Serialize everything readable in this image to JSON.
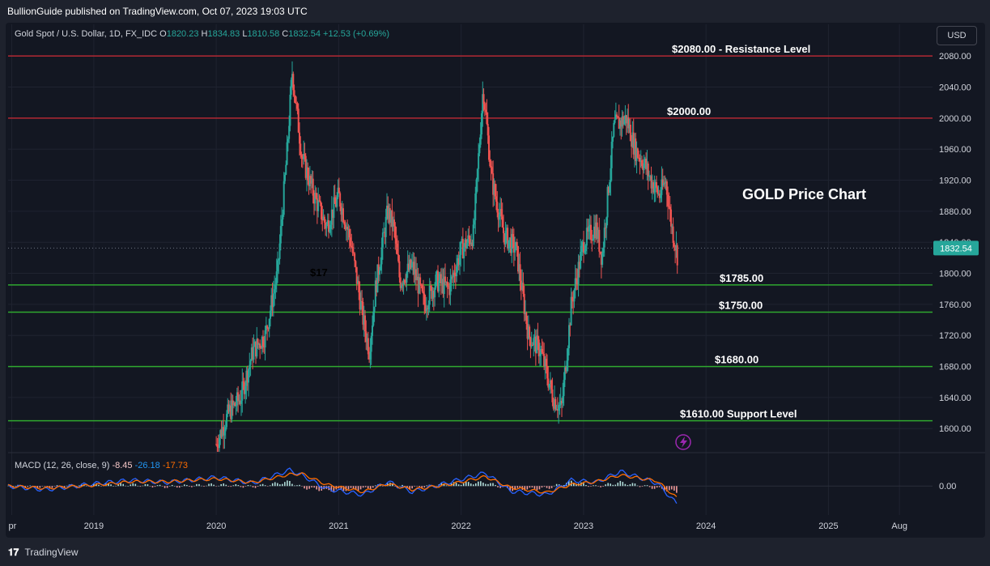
{
  "header": {
    "publisher_line": "BullionGuide published on TradingView.com, Oct 07, 2023 19:03 UTC"
  },
  "legend": {
    "symbol": "Gold Spot / U.S. Dollar, 1D, FX_IDC",
    "o_label": "O",
    "o_value": "1820.23",
    "h_label": "H",
    "h_value": "1834.83",
    "l_label": "L",
    "l_value": "1810.58",
    "c_label": "C",
    "c_value": "1832.54",
    "change": "+12.53 (+0.69%)"
  },
  "currency_button": "USD",
  "macd": {
    "label": "MACD (12, 26, close, 9)",
    "hist_value": "-8.45",
    "macd_value": "-26.18",
    "signal_value": "-17.73"
  },
  "footer": {
    "brand": "TradingView"
  },
  "colors": {
    "resistance": "#b22833",
    "support": "#2fa82f",
    "up": "#26a69a",
    "down": "#ef5350",
    "macd_line": "#2962ff",
    "signal_line": "#ff6d00",
    "last_price_bg": "#26a69a"
  },
  "chart_data": {
    "type": "line",
    "title": "GOLD Price Chart",
    "y_axis_ticks": [
      1600,
      1640,
      1680,
      1720,
      1760,
      1800,
      1840,
      1880,
      1920,
      1960,
      2000,
      2040,
      2080
    ],
    "y_axis_tick_labels": [
      "1600.00",
      "1640.00",
      "1680.00",
      "1720.00",
      "1760.00",
      "1800.00",
      "1840.00",
      "1880.00",
      "1920.00",
      "1960.00",
      "2000.00",
      "2040.00",
      "2080.00"
    ],
    "ylim": [
      1570,
      2100
    ],
    "x_axis_labels": [
      "pr",
      "2019",
      "2020",
      "2021",
      "2022",
      "2023",
      "2024",
      "2025",
      "Aug"
    ],
    "x_axis_values": [
      2018.33,
      2019.0,
      2020.0,
      2021.0,
      2022.0,
      2023.0,
      2024.0,
      2025.0,
      2025.58
    ],
    "xlim": [
      2018.3,
      2025.85
    ],
    "last_price": 1832.54,
    "last_price_label": "1832.54",
    "levels": [
      {
        "value": 2080,
        "label": "$2080.00 - Resistance Level",
        "kind": "resistance"
      },
      {
        "value": 2000,
        "label": "$2000.00",
        "kind": "resistance"
      },
      {
        "value": 1785,
        "label": "$1785.00",
        "kind": "support"
      },
      {
        "value": 1750,
        "label": "$1750.00",
        "kind": "support"
      },
      {
        "value": 1680,
        "label": "$1680.00",
        "kind": "support"
      },
      {
        "value": 1610,
        "label": "$1610.00 Support Level",
        "kind": "support"
      }
    ],
    "partial_annotation": "$17",
    "price_series": {
      "name": "Gold Spot / U.S. Dollar",
      "x": [
        2020.0,
        2020.1,
        2020.2,
        2020.3,
        2020.4,
        2020.5,
        2020.58,
        2020.62,
        2020.7,
        2020.8,
        2020.9,
        2021.0,
        2021.1,
        2021.2,
        2021.25,
        2021.3,
        2021.4,
        2021.45,
        2021.5,
        2021.6,
        2021.7,
        2021.8,
        2021.9,
        2022.0,
        2022.1,
        2022.18,
        2022.25,
        2022.35,
        2022.45,
        2022.55,
        2022.65,
        2022.75,
        2022.82,
        2022.9,
        2023.0,
        2023.1,
        2023.15,
        2023.25,
        2023.35,
        2023.42,
        2023.5,
        2023.55,
        2023.62,
        2023.67,
        2023.72,
        2023.77
      ],
      "y": [
        1580,
        1620,
        1640,
        1700,
        1720,
        1800,
        1960,
        2060,
        1950,
        1900,
        1860,
        1900,
        1840,
        1740,
        1700,
        1780,
        1880,
        1860,
        1790,
        1810,
        1760,
        1790,
        1780,
        1830,
        1850,
        2040,
        1920,
        1850,
        1830,
        1720,
        1700,
        1640,
        1625,
        1760,
        1840,
        1860,
        1820,
        1990,
        2000,
        1960,
        1940,
        1920,
        1900,
        1920,
        1860,
        1820
      ]
    },
    "macd_series": {
      "x": [
        2018.3,
        2018.6,
        2019.0,
        2019.3,
        2019.6,
        2020.0,
        2020.3,
        2020.6,
        2020.7,
        2020.9,
        2021.2,
        2021.4,
        2021.6,
        2021.9,
        2022.2,
        2022.4,
        2022.7,
        2022.9,
        2023.1,
        2023.3,
        2023.6,
        2023.77
      ],
      "macd": [
        0,
        -5,
        3,
        8,
        5,
        12,
        4,
        22,
        15,
        -4,
        -12,
        6,
        -8,
        5,
        18,
        -7,
        -12,
        8,
        5,
        20,
        4,
        -26.18
      ],
      "signal": [
        0,
        -3,
        1,
        6,
        6,
        10,
        5,
        16,
        17,
        2,
        -8,
        3,
        -5,
        2,
        13,
        -2,
        -9,
        2,
        6,
        15,
        7,
        -17.73
      ],
      "ylim": [
        -40,
        45
      ],
      "zero_label": "0.00"
    }
  }
}
